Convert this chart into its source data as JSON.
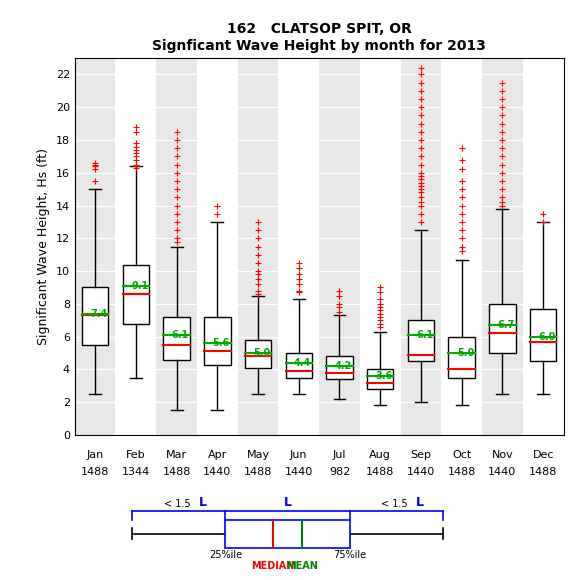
{
  "title1": "162   CLATSOP SPIT, OR",
  "title2": "Signficant Wave Height by month for 2013",
  "ylabel": "Significant Wave Height, Hs (ft)",
  "months": [
    "Jan",
    "Feb",
    "Mar",
    "Apr",
    "May",
    "Jun",
    "Jul",
    "Aug",
    "Sep",
    "Oct",
    "Nov",
    "Dec"
  ],
  "counts": [
    1488,
    1344,
    1488,
    1440,
    1488,
    1440,
    982,
    1488,
    1440,
    1488,
    1440,
    1488
  ],
  "boxes": [
    {
      "q1": 5.5,
      "median": 7.3,
      "mean": 7.4,
      "q3": 9.0,
      "whislo": 2.5,
      "whishi": 15.0
    },
    {
      "q1": 6.8,
      "median": 8.6,
      "mean": 9.1,
      "q3": 10.4,
      "whislo": 3.5,
      "whishi": 16.4
    },
    {
      "q1": 4.6,
      "median": 5.5,
      "mean": 6.1,
      "q3": 7.2,
      "whislo": 1.5,
      "whishi": 11.5
    },
    {
      "q1": 4.3,
      "median": 5.1,
      "mean": 5.6,
      "q3": 7.2,
      "whislo": 1.5,
      "whishi": 13.0
    },
    {
      "q1": 4.1,
      "median": 4.8,
      "mean": 5.0,
      "q3": 5.8,
      "whislo": 2.5,
      "whishi": 8.5
    },
    {
      "q1": 3.5,
      "median": 3.9,
      "mean": 4.4,
      "q3": 5.0,
      "whislo": 2.5,
      "whishi": 8.3
    },
    {
      "q1": 3.4,
      "median": 3.8,
      "mean": 4.2,
      "q3": 4.8,
      "whislo": 2.2,
      "whishi": 7.3
    },
    {
      "q1": 2.8,
      "median": 3.2,
      "mean": 3.6,
      "q3": 4.0,
      "whislo": 1.8,
      "whishi": 6.3
    },
    {
      "q1": 4.5,
      "median": 4.9,
      "mean": 6.1,
      "q3": 7.0,
      "whislo": 2.0,
      "whishi": 12.5
    },
    {
      "q1": 3.5,
      "median": 4.0,
      "mean": 5.0,
      "q3": 6.0,
      "whislo": 1.8,
      "whishi": 10.7
    },
    {
      "q1": 5.0,
      "median": 6.2,
      "mean": 6.7,
      "q3": 8.0,
      "whislo": 2.5,
      "whishi": 13.8
    },
    {
      "q1": 4.5,
      "median": 5.7,
      "mean": 6.0,
      "q3": 7.7,
      "whislo": 2.5,
      "whishi": 13.0
    }
  ],
  "outliers": [
    [
      16.2,
      16.4,
      16.5,
      16.6,
      15.5
    ],
    [
      18.5,
      18.8,
      16.3,
      16.4,
      16.5,
      16.8,
      17.0,
      17.2,
      17.4,
      17.6,
      17.8
    ],
    [
      18.5,
      18.0,
      17.5,
      17.0,
      16.5,
      16.0,
      15.5,
      15.0,
      14.5,
      14.0,
      13.5,
      13.0,
      12.5,
      12.0,
      11.8
    ],
    [
      13.5,
      14.0
    ],
    [
      13.0,
      12.5,
      12.0,
      11.5,
      11.0,
      10.5,
      10.0,
      9.8,
      9.5,
      9.2,
      8.8,
      8.6
    ],
    [
      10.5,
      10.2,
      9.8,
      9.5,
      9.2,
      8.8,
      8.7
    ],
    [
      8.8,
      8.5,
      8.0,
      7.8,
      7.5
    ],
    [
      9.0,
      8.7,
      8.3,
      8.0,
      7.8,
      7.6,
      7.4,
      7.2,
      7.0,
      6.8,
      6.6
    ],
    [
      22.4,
      22.0,
      21.5,
      21.0,
      20.5,
      20.0,
      19.5,
      19.0,
      18.5,
      18.0,
      17.5,
      17.0,
      16.5,
      16.0,
      15.8,
      15.6,
      15.4,
      15.2,
      15.0,
      14.8,
      14.5,
      14.2,
      14.0,
      13.5,
      13.0
    ],
    [
      17.5,
      16.8,
      16.2,
      15.5,
      15.0,
      14.5,
      14.0,
      13.5,
      13.0,
      12.5,
      12.0,
      11.5,
      11.2
    ],
    [
      21.5,
      21.0,
      20.5,
      20.0,
      19.5,
      19.0,
      18.5,
      18.0,
      17.5,
      17.0,
      16.5,
      16.0,
      15.5,
      15.0,
      14.5,
      14.2,
      14.0
    ],
    [
      13.5,
      13.0
    ]
  ],
  "bg_colors": [
    "#e8e8e8",
    "#ffffff"
  ],
  "box_color": "#000000",
  "median_color": "#ff0000",
  "mean_color": "#00aa00",
  "outlier_color": "#ff0000",
  "whisker_color": "#000000",
  "ylim": [
    0,
    23
  ],
  "yticks": [
    0,
    2,
    4,
    6,
    8,
    10,
    12,
    14,
    16,
    18,
    20,
    22
  ]
}
